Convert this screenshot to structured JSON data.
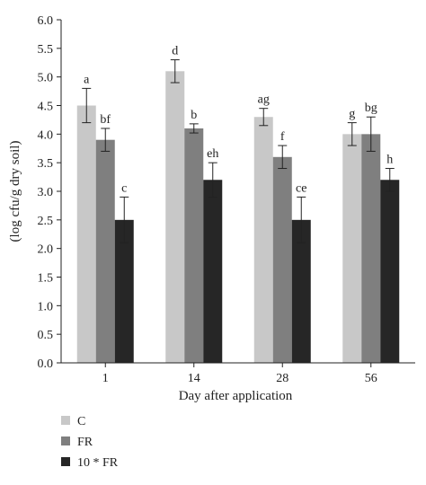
{
  "chart_data": {
    "type": "bar",
    "categories": [
      "1",
      "14",
      "28",
      "56"
    ],
    "series": [
      {
        "name": "C",
        "color": "#c8c8c8",
        "values": [
          4.5,
          5.1,
          4.3,
          4.0
        ],
        "errors": [
          0.3,
          0.2,
          0.15,
          0.2
        ],
        "labels": [
          "a",
          "d",
          "ag",
          "g"
        ]
      },
      {
        "name": "FR",
        "color": "#7f7f7f",
        "values": [
          3.9,
          4.1,
          3.6,
          4.0
        ],
        "errors": [
          0.2,
          0.08,
          0.2,
          0.3
        ],
        "labels": [
          "bf",
          "b",
          "f",
          "bg"
        ]
      },
      {
        "name": "10 * FR",
        "color": "#262626",
        "values": [
          2.5,
          3.2,
          2.5,
          3.2
        ],
        "errors": [
          0.4,
          0.3,
          0.4,
          0.2
        ],
        "labels": [
          "c",
          "eh",
          "ce",
          "h"
        ]
      }
    ],
    "yticks": [
      "0.0",
      "0.5",
      "1.0",
      "1.5",
      "2.0",
      "2.5",
      "3.0",
      "3.5",
      "4.0",
      "4.5",
      "5.0",
      "5.5",
      "6.0"
    ],
    "xlabel": "Day after application",
    "ylabel": "(log cfu/g dry soil)",
    "ylim": [
      0,
      6
    ],
    "grid": false,
    "legend_position": "bottom-left"
  }
}
